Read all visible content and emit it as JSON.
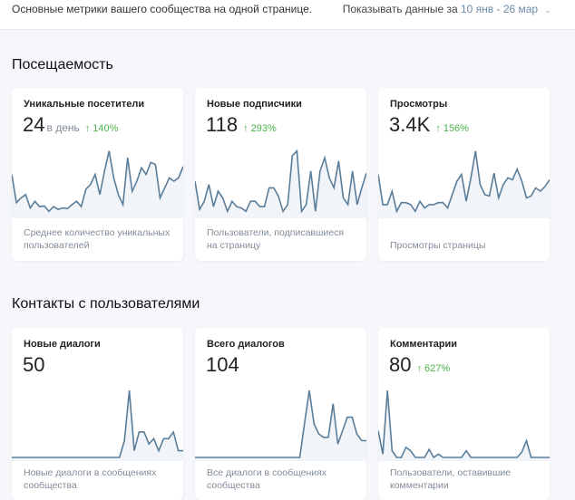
{
  "header": {
    "subtitle": "Основные метрики вашего сообщества на одной странице.",
    "period_label": "Показывать данные за",
    "period_value": "10 янв - 26 мар",
    "chevron_icon": "chevron-down-icon"
  },
  "colors": {
    "line": "#5a7d99",
    "fill": "#f1f4f8",
    "positive": "#4bb34b"
  },
  "sections": [
    {
      "title": "Посещаемость",
      "cards": [
        {
          "title": "Уникальные посетители",
          "value": "24",
          "unit": "в день",
          "delta": "↑ 140%",
          "description": "Среднее количество уникальных пользователей",
          "sparkline": [
            60,
            18,
            25,
            30,
            10,
            20,
            12,
            13,
            5,
            12,
            8,
            10,
            9,
            15,
            20,
            12,
            38,
            45,
            60,
            30,
            65,
            95,
            55,
            30,
            15,
            85,
            35,
            50,
            70,
            60,
            78,
            75,
            25,
            40,
            55,
            50,
            55,
            72
          ]
        },
        {
          "title": "Новые подписчики",
          "value": "118",
          "unit": "",
          "delta": "↑ 293%",
          "description": "Пользователи, подписавшиеся на страницу",
          "sparkline": [
            50,
            8,
            20,
            45,
            12,
            35,
            25,
            5,
            20,
            12,
            10,
            5,
            20,
            20,
            12,
            12,
            40,
            40,
            28,
            5,
            15,
            88,
            95,
            5,
            15,
            65,
            5,
            65,
            85,
            55,
            40,
            80,
            25,
            15,
            65,
            15,
            40,
            62
          ]
        },
        {
          "title": "Просмотры",
          "value": "3.4K",
          "unit": "",
          "delta": "↑ 156%",
          "description": "Просмотры страницы",
          "sparkline": [
            60,
            15,
            15,
            35,
            5,
            18,
            18,
            15,
            5,
            20,
            10,
            15,
            15,
            18,
            18,
            10,
            30,
            50,
            60,
            20,
            55,
            95,
            45,
            30,
            28,
            62,
            25,
            45,
            55,
            52,
            68,
            50,
            25,
            28,
            40,
            35,
            42,
            52
          ]
        }
      ]
    },
    {
      "title": "Контакты с пользователями",
      "cards": [
        {
          "title": "Новые диалоги",
          "value": "50",
          "unit": "",
          "delta": "",
          "description": "Новые диалоги в сообщениях сообщества",
          "sparkline": [
            0,
            0,
            0,
            0,
            0,
            0,
            0,
            0,
            0,
            0,
            0,
            0,
            0,
            0,
            0,
            0,
            0,
            0,
            0,
            0,
            0,
            0,
            0,
            25,
            100,
            10,
            38,
            38,
            20,
            28,
            10,
            28,
            28,
            38,
            10,
            10
          ]
        },
        {
          "title": "Всего диалогов",
          "value": "104",
          "unit": "",
          "delta": "",
          "description": "Все диалоги в сообщениях сообщества",
          "sparkline": [
            0,
            0,
            0,
            0,
            0,
            0,
            0,
            0,
            0,
            0,
            0,
            0,
            0,
            0,
            0,
            0,
            0,
            0,
            0,
            0,
            0,
            0,
            0,
            50,
            100,
            50,
            35,
            30,
            30,
            80,
            20,
            40,
            60,
            60,
            35,
            25,
            25
          ]
        },
        {
          "title": "Комментарии",
          "value": "80",
          "unit": "",
          "delta": "↑ 627%",
          "description": "Пользователи, оставившие комментарии",
          "sparkline": [
            40,
            5,
            100,
            10,
            0,
            0,
            15,
            10,
            0,
            0,
            0,
            12,
            0,
            5,
            0,
            0,
            0,
            0,
            0,
            10,
            0,
            0,
            0,
            0,
            0,
            0,
            0,
            0,
            0,
            0,
            0,
            8,
            25,
            0,
            0,
            0,
            0,
            0
          ]
        }
      ]
    }
  ]
}
